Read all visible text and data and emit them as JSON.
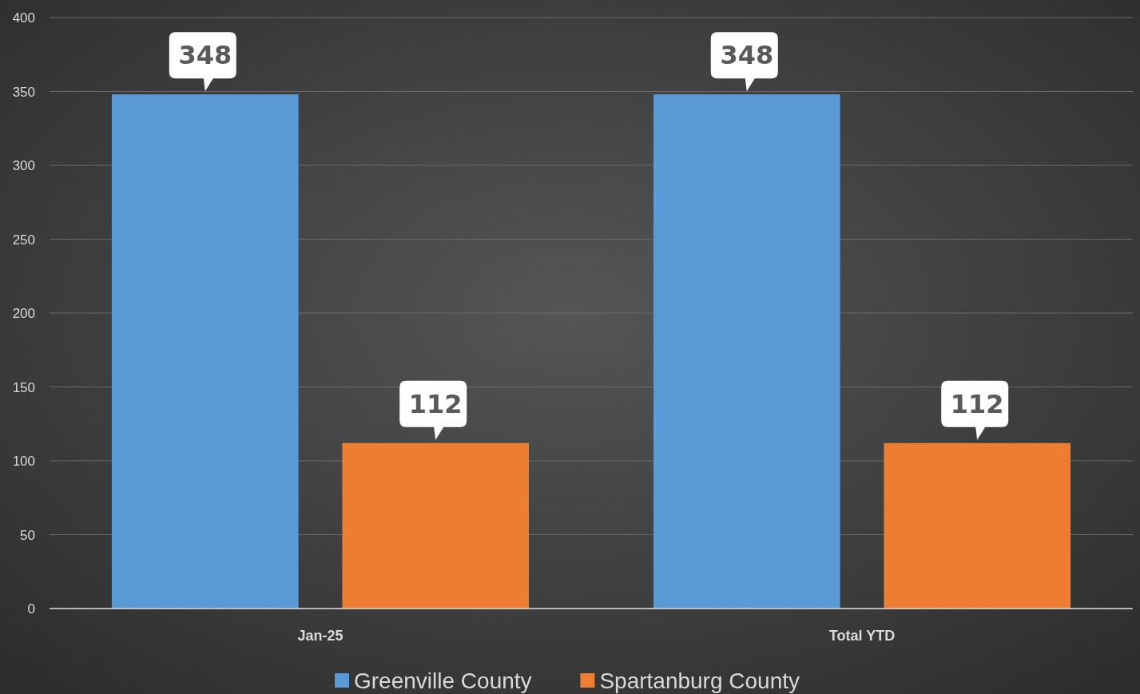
{
  "chart_data": {
    "type": "bar",
    "categories": [
      "Jan-25",
      "Total YTD"
    ],
    "series": [
      {
        "name": "Greenville County",
        "color": "#5b9bd5",
        "values": [
          348,
          348
        ]
      },
      {
        "name": "Spartanburg County",
        "color": "#ed7d31",
        "values": [
          112,
          112
        ]
      }
    ],
    "ylim": [
      0,
      400
    ],
    "yticks": [
      0,
      50,
      100,
      150,
      200,
      250,
      300,
      350,
      400
    ],
    "grid": "y",
    "legend": "bottom",
    "data_labels": true
  }
}
